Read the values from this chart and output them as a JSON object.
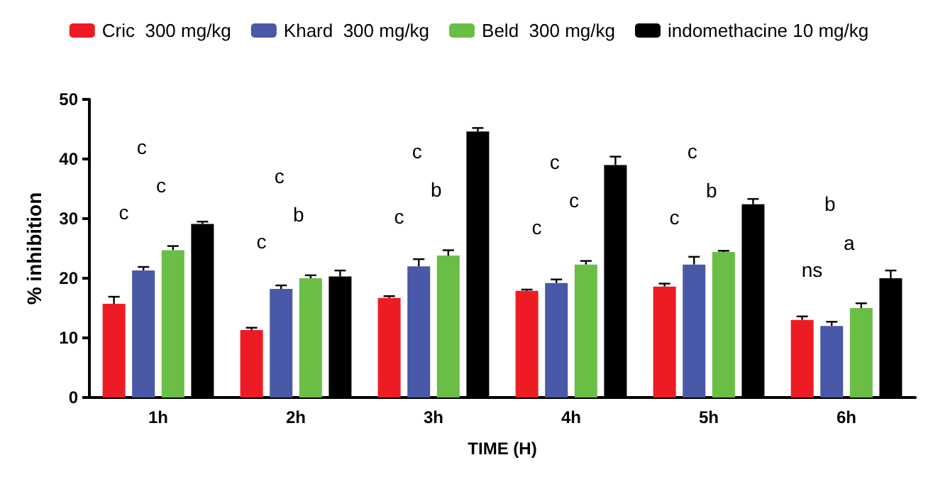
{
  "chart_data": {
    "type": "bar",
    "xlabel": "TIME (H)",
    "ylabel": "% inhibition",
    "categories": [
      "1h",
      "2h",
      "3h",
      "4h",
      "5h",
      "6h"
    ],
    "series": [
      {
        "name": "Cric  300 mg/kg",
        "color": "#ed1c24",
        "values": [
          15.7,
          11.3,
          16.7,
          17.9,
          18.6,
          13
        ],
        "errors": [
          1.2,
          0.4,
          0.3,
          0.2,
          0.5,
          0.6
        ]
      },
      {
        "name": "Khard  300 mg/kg",
        "color": "#4a58a8",
        "values": [
          21.3,
          18.2,
          22,
          19.2,
          22.3,
          12
        ],
        "errors": [
          0.6,
          0.6,
          1.2,
          0.6,
          1.3,
          0.7
        ]
      },
      {
        "name": "Beld  300 mg/kg",
        "color": "#6abd45",
        "values": [
          24.7,
          20,
          23.8,
          22.3,
          24.4,
          15
        ],
        "errors": [
          0.7,
          0.5,
          0.9,
          0.6,
          0.2,
          0.8
        ]
      },
      {
        "name": "indomethacine 10 mg/kg",
        "color": "#000000",
        "values": [
          29.1,
          20.3,
          44.6,
          39,
          32.4,
          20
        ],
        "errors": [
          0.4,
          1,
          0.6,
          1.4,
          0.9,
          1.3
        ]
      }
    ],
    "ylim": [
      0,
      50
    ],
    "yticks": [
      0,
      10,
      20,
      30,
      40,
      50
    ],
    "grid": false,
    "legend": "top",
    "annotations": [
      "c",
      "c",
      "c",
      "c",
      "b",
      "c",
      "c",
      "b",
      "c",
      "c",
      "c",
      "c",
      "c",
      "b",
      "c",
      "b",
      "a",
      "ns"
    ]
  }
}
